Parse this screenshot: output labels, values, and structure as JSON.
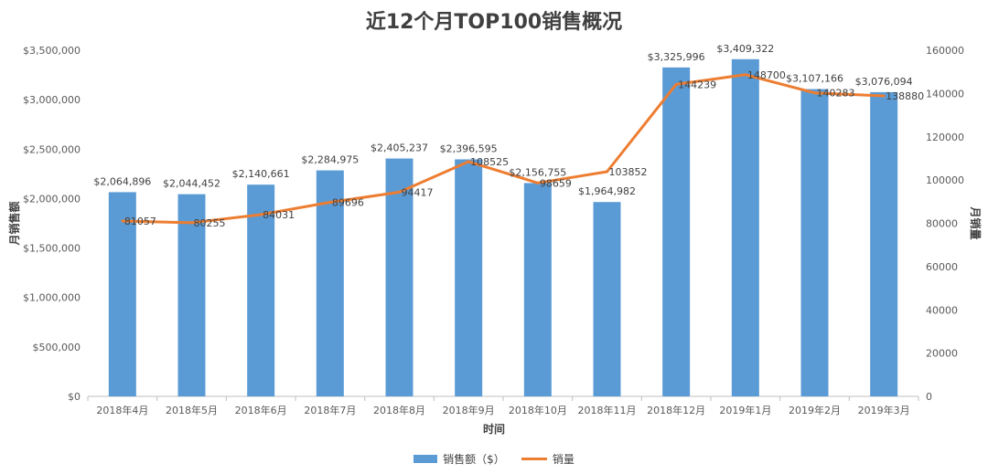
{
  "chart_data": {
    "type": "bar",
    "title": "近12个月TOP100销售概况",
    "xlabel": "时间",
    "ylabel": "月销售额",
    "y2label": "月销量",
    "categories": [
      "2018年4月",
      "2018年5月",
      "2018年6月",
      "2018年7月",
      "2018年8月",
      "2018年9月",
      "2018年10月",
      "2018年11月",
      "2018年12月",
      "2019年1月",
      "2019年2月",
      "2019年3月"
    ],
    "series": [
      {
        "name": "销售额（$）",
        "type": "bar",
        "axis": "left",
        "color": "#5b9bd5",
        "values": [
          2064896,
          2044452,
          2140661,
          2284975,
          2405237,
          2396595,
          2156755,
          1964982,
          3325996,
          3409322,
          3107166,
          3076094
        ],
        "labels": [
          "$2,064,896",
          "$2,044,452",
          "$2,140,661",
          "$2,284,975",
          "$2,405,237",
          "$2,396,595",
          "$2,156,755",
          "$1,964,982",
          "$3,325,996",
          "$3,409,322",
          "$3,107,166",
          "$3,076,094"
        ]
      },
      {
        "name": "销量",
        "type": "line",
        "axis": "right",
        "color": "#ed7d31",
        "values": [
          81057,
          80255,
          84031,
          89696,
          94417,
          108525,
          98659,
          103852,
          144239,
          148700,
          140283,
          138880
        ],
        "labels": [
          "81057",
          "80255",
          "84031",
          "89696",
          "94417",
          "108525",
          "98659",
          "103852",
          "144239",
          "148700",
          "140283",
          "138880"
        ]
      }
    ],
    "ylim": [
      0,
      3500000
    ],
    "y2lim": [
      0,
      160000
    ],
    "yticks": [
      "$0",
      "$500,000",
      "$1,000,000",
      "$1,500,000",
      "$2,000,000",
      "$2,500,000",
      "$3,000,000",
      "$3,500,000"
    ],
    "y2ticks": [
      "0",
      "20000",
      "40000",
      "60000",
      "80000",
      "100000",
      "120000",
      "140000",
      "160000"
    ],
    "grid": false,
    "legend_position": "bottom"
  }
}
